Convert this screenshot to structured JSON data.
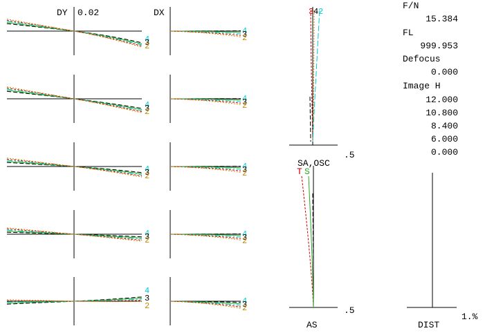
{
  "ray_fan": {
    "dy_label": "DY",
    "scale": "0.02",
    "dx_label": "DX",
    "curve_labels": [
      "2",
      "3",
      "4"
    ]
  },
  "info": {
    "fn_label": "F/N",
    "fn": "15.384",
    "fl_label": "FL",
    "fl": "999.953",
    "defocus_label": "Defocus",
    "defocus": "0.000",
    "image_h_label": "Image H",
    "image_h": [
      "12.000",
      "10.800",
      "8.400",
      "6.000",
      "0.000"
    ]
  },
  "astig": {
    "scale": ".5",
    "curve_labels": [
      "3",
      "4",
      "2"
    ]
  },
  "spherical": {
    "title": "SA,OSC",
    "t": "T",
    "s": "S",
    "scale": ".5",
    "label": "AS"
  },
  "distortion": {
    "label": "DIST",
    "scale": "1.%"
  }
}
